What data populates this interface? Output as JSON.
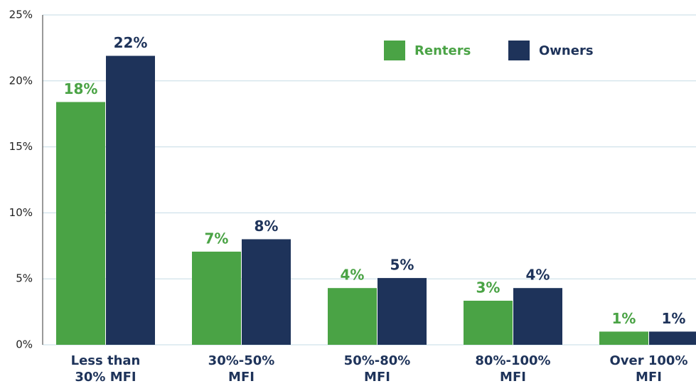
{
  "chart_data": {
    "type": "bar",
    "categories": [
      "Less than\n30% MFI",
      "30%-50%\nMFI",
      "50%-80%\nMFI",
      "80%-100%\nMFI",
      "Over 100%\nMFI"
    ],
    "series": [
      {
        "name": "Renters",
        "color": "#4aa345",
        "values": [
          18.4,
          7.06,
          4.3,
          3.34,
          1.0
        ],
        "value_labels": [
          "18%",
          "7%",
          "4%",
          "3%",
          "1%"
        ]
      },
      {
        "name": "Owners",
        "color": "#1e335a",
        "values": [
          21.9,
          8.0,
          5.06,
          4.3,
          1.0
        ],
        "value_labels": [
          "22%",
          "8%",
          "5%",
          "4%",
          "1%"
        ]
      }
    ],
    "ylim": [
      0,
      25
    ],
    "yticks": [
      {
        "value": 0,
        "label": "0%"
      },
      {
        "value": 5,
        "label": "5%"
      },
      {
        "value": 10,
        "label": "10%"
      },
      {
        "value": 15,
        "label": "15%"
      },
      {
        "value": 20,
        "label": "20%"
      },
      {
        "value": 25,
        "label": "25%"
      }
    ],
    "grid": true,
    "legend": "top-right"
  }
}
